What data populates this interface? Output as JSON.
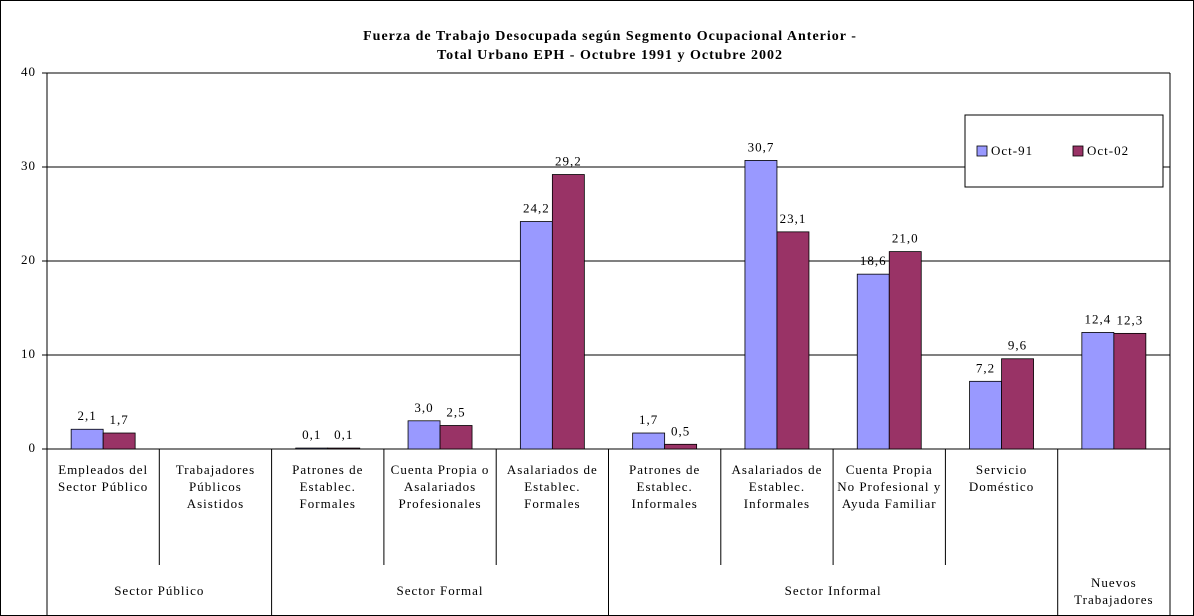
{
  "chart_data": {
    "type": "bar",
    "title": "Fuerza de Trabajo Desocupada según Segmento Ocupacional Anterior -",
    "subtitle": "Total Urbano EPH - Octubre 1991 y Octubre 2002",
    "categories": [
      "Empleados del Sector Público",
      "Trabajadores Públicos Asistidos",
      "Patrones de Establec. Formales",
      "Cuenta Propia o Asalariados Profesionales",
      "Asalariados de Establec. Formales",
      "Patrones de Establec. Informales",
      "Asalariados de Establec. Informales",
      "Cuenta Propia No Profesional y Ayuda Familiar",
      "Servicio Doméstico",
      null
    ],
    "groups": [
      {
        "label": "Sector Público",
        "categories": 2
      },
      {
        "label": "Sector Formal",
        "categories": 3
      },
      {
        "label": "Sector Informal",
        "categories": 4
      },
      {
        "label": "Nuevos Trabajadores",
        "categories": 1
      }
    ],
    "series": [
      {
        "name": "Oct-91",
        "color": "#9999ff",
        "values": [
          2.1,
          null,
          0.1,
          3.0,
          24.2,
          1.7,
          30.7,
          18.6,
          7.2,
          12.4
        ],
        "value_labels": [
          "2,1",
          null,
          "0,1",
          "3,0",
          "24,2",
          "1,7",
          "30,7",
          "18,6",
          "7,2",
          "12,4"
        ]
      },
      {
        "name": "Oct-02",
        "color": "#993366",
        "values": [
          1.7,
          null,
          0.1,
          2.5,
          29.2,
          0.5,
          23.1,
          21.0,
          9.6,
          12.3
        ],
        "value_labels": [
          "1,7",
          null,
          "0,1",
          "2,5",
          "29,2",
          "0,5",
          "23,1",
          "21,0",
          "9,6",
          "12,3"
        ]
      }
    ],
    "ylim": [
      0,
      40
    ],
    "yticks": [
      0,
      10,
      20,
      30,
      40
    ],
    "grid": true,
    "legend": "top-right"
  }
}
